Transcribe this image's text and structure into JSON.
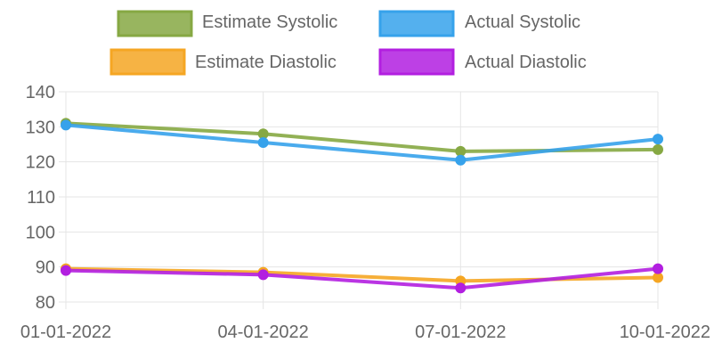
{
  "chart_data": {
    "type": "line",
    "categories": [
      "01-01-2022",
      "04-01-2022",
      "07-01-2022",
      "10-01-2022"
    ],
    "ylim": [
      80,
      140
    ],
    "yticks": [
      80,
      90,
      100,
      110,
      120,
      130,
      140
    ],
    "grid": true,
    "legend_position": "top",
    "series": [
      {
        "name": "Estimate Systolic",
        "values": [
          131,
          128,
          123,
          123.5
        ],
        "color": "#86a843"
      },
      {
        "name": "Actual Systolic",
        "values": [
          130.5,
          125.5,
          120.5,
          126.5
        ],
        "color": "#36a2eb"
      },
      {
        "name": "Estimate Diastolic",
        "values": [
          89.5,
          88.5,
          86,
          87
        ],
        "color": "#f5a623"
      },
      {
        "name": "Actual Diastolic",
        "values": [
          89,
          87.8,
          84,
          89.5
        ],
        "color": "#b21fe0"
      }
    ]
  }
}
